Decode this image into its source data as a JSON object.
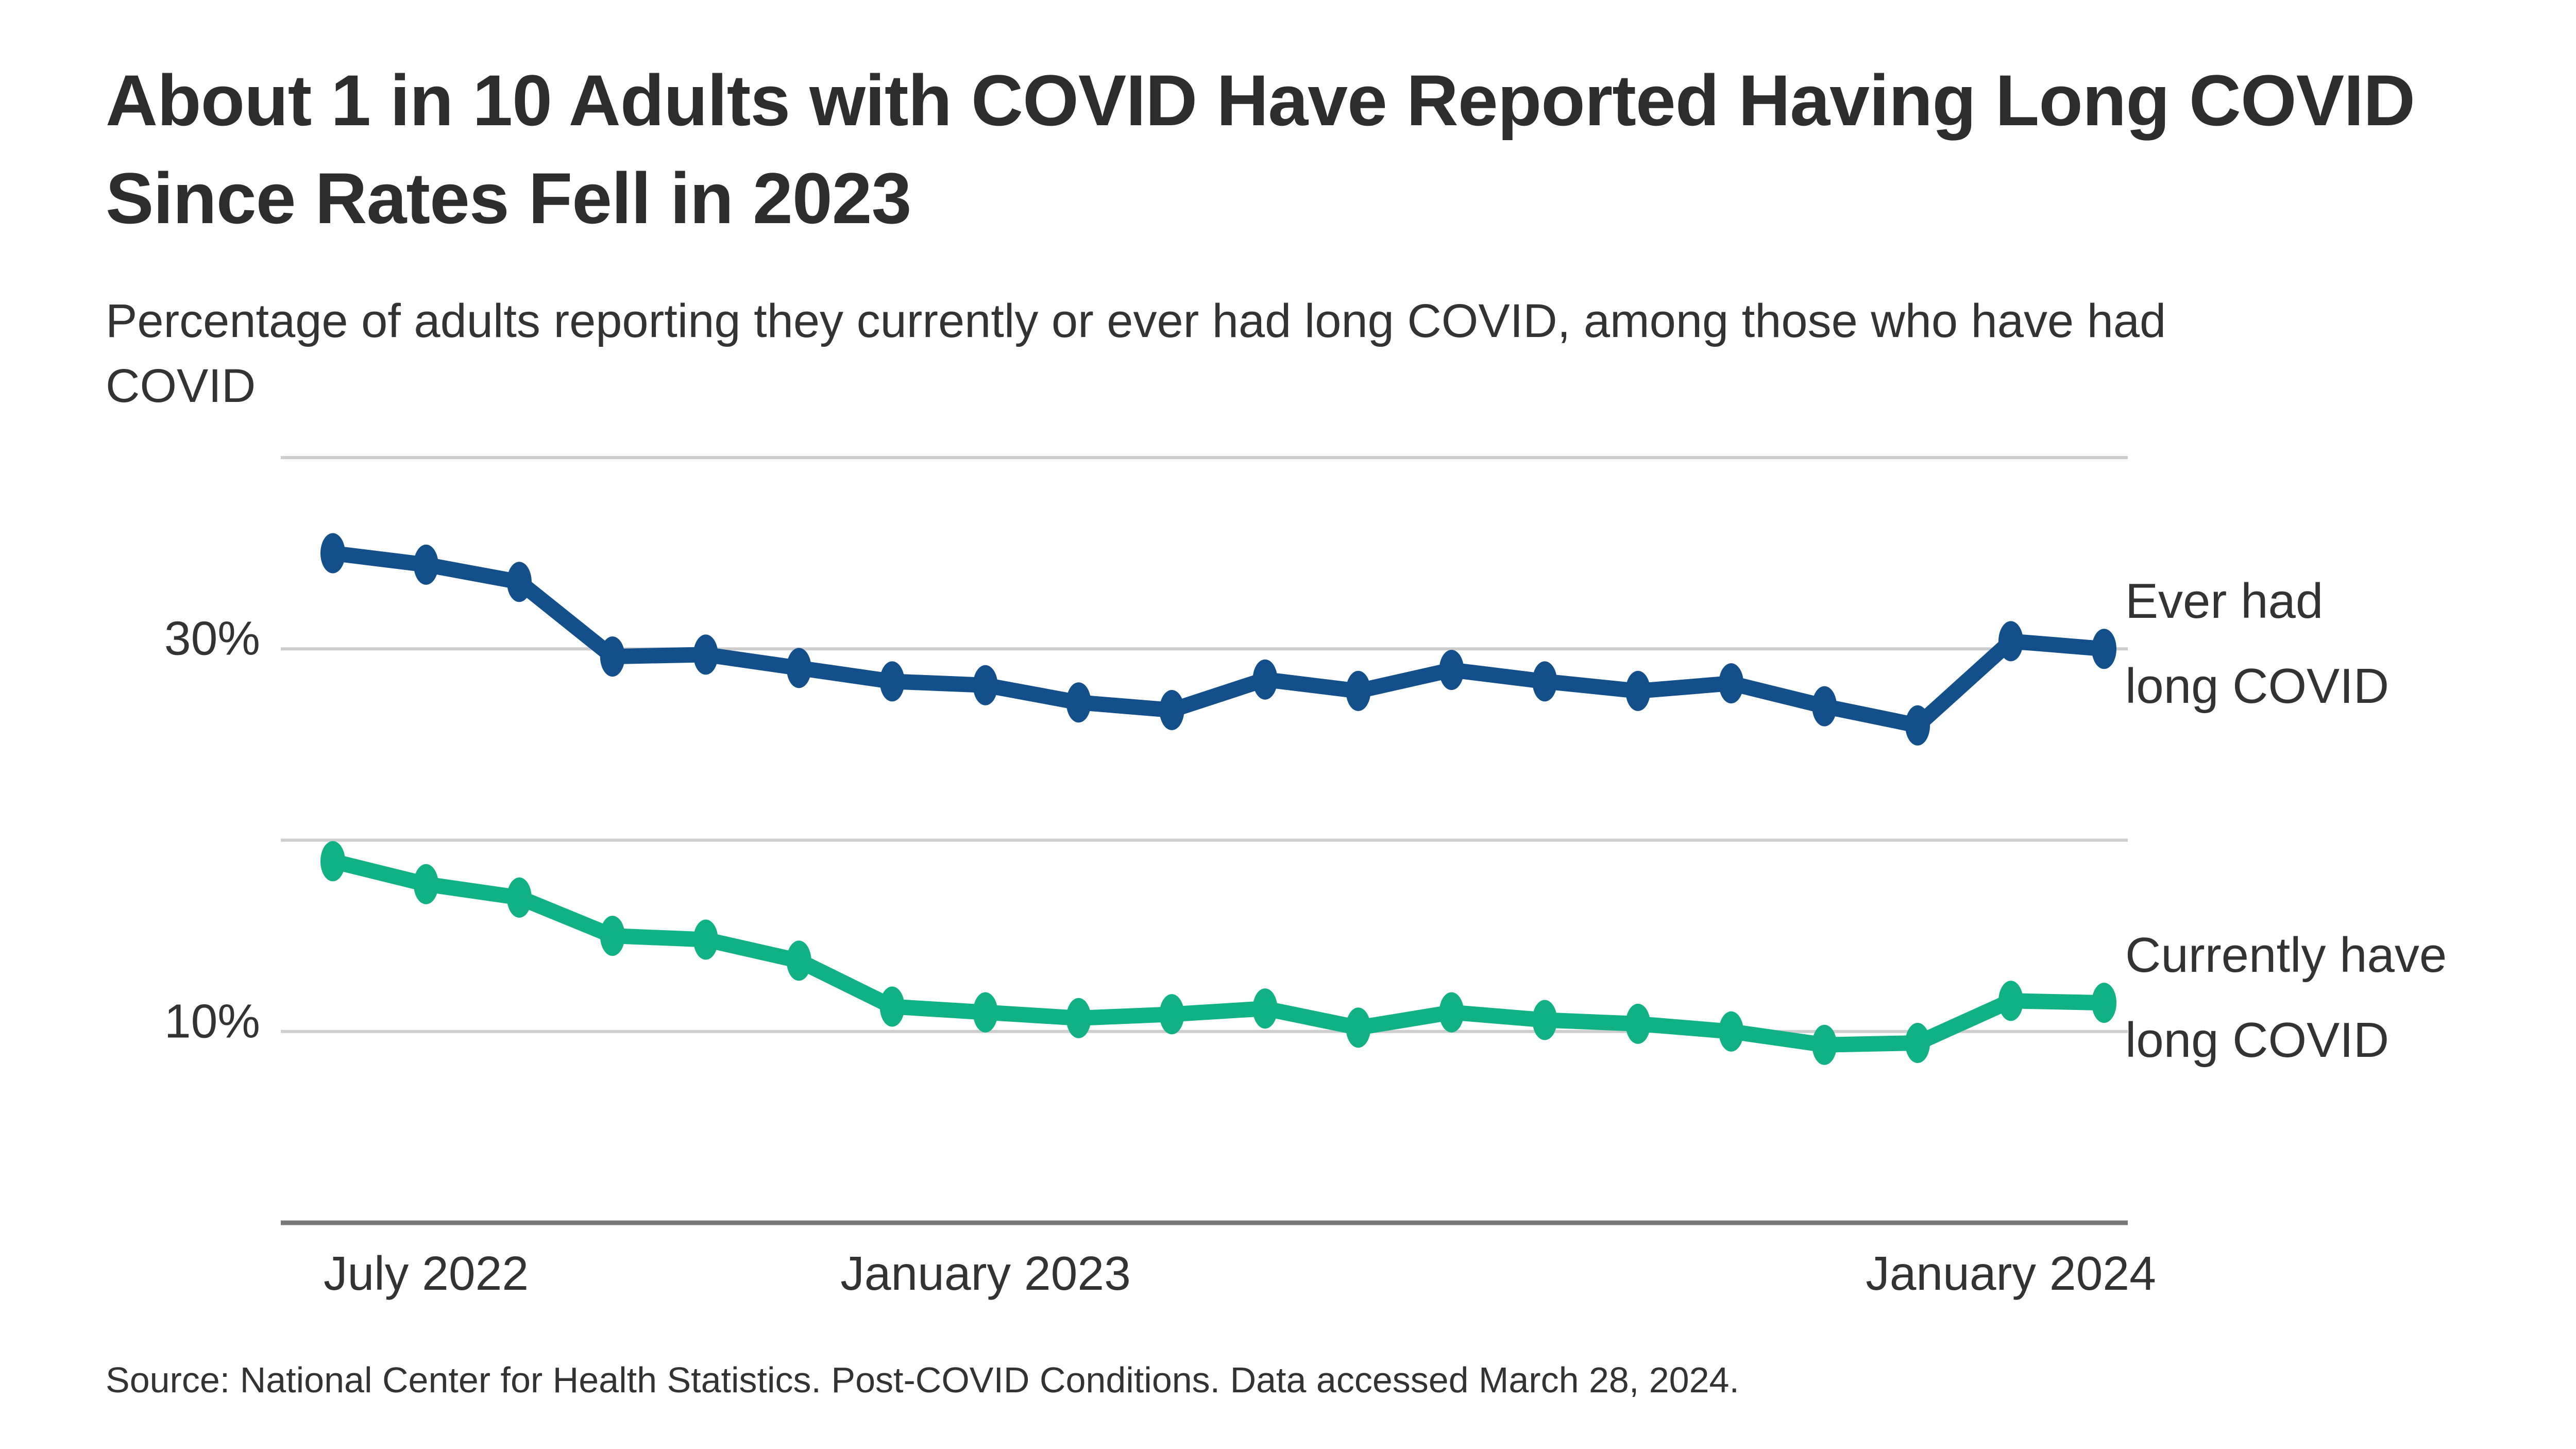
{
  "page": {
    "title": "About 1 in 10 Adults with COVID Have Reported Having Long COVID Since Rates Fell in 2023",
    "subtitle": "Percentage of adults reporting they currently or ever had long COVID, among those who have had COVID",
    "source": "Source: National Center for Health Statistics. Post-COVID Conditions. Data accessed March 28, 2024."
  },
  "colors": {
    "ever_line": "#134F8A",
    "current_line": "#10B285",
    "gridline": "#CDCDCD",
    "axis": "#787878",
    "title_text": "#2D2D2D",
    "body_text": "#333333"
  },
  "chart_data": {
    "type": "line",
    "title": "About 1 in 10 Adults with COVID Have Reported Having Long COVID Since Rates Fell in 2023",
    "subtitle": "Percentage of adults reporting they currently or ever had long COVID, among those who have had COVID",
    "y_axis": {
      "unit": "percent",
      "range": [
        0,
        43.5
      ],
      "gridlines": [
        40,
        30,
        20,
        10
      ],
      "baseline": 0,
      "tick_labels": [
        {
          "value": 30,
          "label": "30%"
        },
        {
          "value": 10,
          "label": "10%"
        }
      ]
    },
    "x_axis": {
      "tick_labels": [
        {
          "label": "July 2022",
          "point_index": 1
        },
        {
          "label": "January 2023",
          "point_index": 7
        },
        {
          "label": "January 2024",
          "point_index": 18
        }
      ]
    },
    "legend_position": "right",
    "grid": "horizontal-only",
    "points_count": 20,
    "series": [
      {
        "name": "Ever had long COVID",
        "legend_lines": [
          "Ever had",
          "long COVID"
        ],
        "color_key": "ever_line",
        "values": [
          35.0,
          34.4,
          33.5,
          29.6,
          29.7,
          29.0,
          28.3,
          28.1,
          27.2,
          26.8,
          28.4,
          27.8,
          28.9,
          28.3,
          27.8,
          28.2,
          27.0,
          26.0,
          30.4,
          30.0
        ]
      },
      {
        "name": "Currently have long COVID",
        "legend_lines": [
          "Currently have",
          "long COVID"
        ],
        "color_key": "current_line",
        "values": [
          18.9,
          17.7,
          17.0,
          15.0,
          14.8,
          13.7,
          11.3,
          11.0,
          10.7,
          10.9,
          11.2,
          10.2,
          11.0,
          10.6,
          10.4,
          10.0,
          9.3,
          9.4,
          11.6,
          11.5
        ]
      }
    ]
  }
}
